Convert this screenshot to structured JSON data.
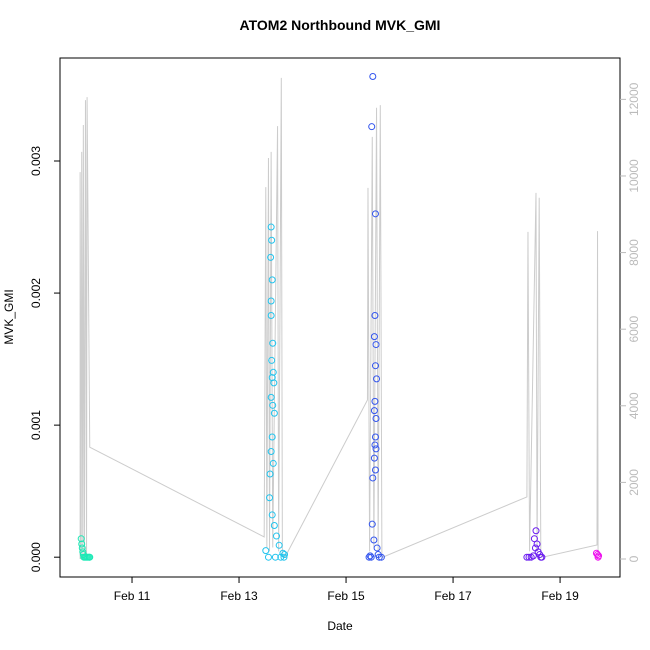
{
  "chart_data": {
    "type": "scatter",
    "title": "ATOM2 Northbound MVK_GMI",
    "xlabel": "Date",
    "ylabel": "MVK_GMI",
    "xlim": [
      9.654,
      20.12
    ],
    "ylim": [
      -0.00015,
      0.00378
    ],
    "y2lim": [
      -470,
      13080
    ],
    "xticks": [
      {
        "value": 11,
        "label": "Feb 11"
      },
      {
        "value": 13,
        "label": "Feb 13"
      },
      {
        "value": 15,
        "label": "Feb 15"
      },
      {
        "value": 17,
        "label": "Feb 17"
      },
      {
        "value": 19,
        "label": "Feb 19"
      }
    ],
    "yticks": [
      {
        "value": 0,
        "label": "0.000"
      },
      0.001,
      0.002,
      0.003
    ],
    "y2ticks": [
      0,
      2000,
      4000,
      6000,
      8000,
      10000,
      12000
    ],
    "series": [
      {
        "type": "line",
        "axis": "y2",
        "color": "#cccccc",
        "x": [
          10.03,
          10.03,
          10.05,
          10.06,
          10.08,
          10.09,
          10.11,
          10.13,
          10.15,
          10.16,
          10.21,
          13.47,
          13.5,
          13.52,
          13.55,
          13.57,
          13.6,
          13.63,
          13.72,
          13.74,
          13.79,
          13.81,
          13.86,
          15.4,
          15.41,
          15.44,
          15.49,
          15.52,
          15.57,
          15.6,
          15.64,
          15.67,
          15.69,
          18.38,
          18.4,
          18.43,
          18.55,
          18.57,
          18.61,
          18.64,
          18.68,
          19.69,
          19.7,
          19.71
        ],
        "values": [
          0,
          10100,
          0,
          10630,
          0,
          11330,
          0,
          11980,
          0,
          12060,
          2920,
          575,
          9710,
          300,
          10470,
          200,
          10630,
          300,
          11300,
          200,
          12560,
          100,
          50,
          4150,
          9690,
          200,
          11020,
          300,
          11780,
          200,
          11850,
          100,
          50,
          1620,
          8540,
          200,
          9560,
          200,
          9430,
          100,
          50,
          365,
          8560,
          100
        ]
      },
      {
        "color": "#1de9b6",
        "x": [
          10.05,
          10.06,
          10.07,
          10.08,
          10.09,
          10.1,
          10.12,
          10.14,
          10.16,
          10.18,
          10.2,
          10.21
        ],
        "values": [
          0.00014,
          0.0001,
          7e-05,
          4e-05,
          2e-05,
          0,
          0,
          0,
          0,
          0,
          0,
          0
        ]
      },
      {
        "color": "#22c4ee",
        "x": [
          13.6,
          13.61,
          13.59,
          13.62,
          13.6,
          13.6,
          13.63,
          13.61,
          13.64,
          13.62,
          13.65,
          13.6,
          13.63,
          13.66,
          13.62,
          13.6,
          13.64,
          13.58,
          13.57,
          13.62,
          13.66,
          13.7,
          13.75,
          13.82,
          13.85,
          13.5,
          13.55,
          13.68,
          13.78,
          13.84
        ],
        "values": [
          0.0025,
          0.0024,
          0.00227,
          0.0021,
          0.00194,
          0.00183,
          0.00162,
          0.00149,
          0.0014,
          0.00136,
          0.00132,
          0.00121,
          0.00115,
          0.00109,
          0.00091,
          0.0008,
          0.00071,
          0.00063,
          0.00045,
          0.00032,
          0.00024,
          0.00016,
          9e-05,
          3e-05,
          2e-05,
          5e-05,
          0,
          0,
          0,
          0
        ]
      },
      {
        "color": "#3355ee",
        "x": [
          15.5,
          15.48,
          15.55,
          15.54,
          15.53,
          15.56,
          15.55,
          15.57,
          15.54,
          15.53,
          15.56,
          15.55,
          15.54,
          15.56,
          15.53,
          15.55,
          15.5,
          15.49,
          15.52,
          15.58,
          15.6,
          15.45,
          15.43,
          15.47,
          15.62,
          15.66
        ],
        "values": [
          0.00364,
          0.00326,
          0.0026,
          0.00183,
          0.00167,
          0.00161,
          0.00145,
          0.00135,
          0.00118,
          0.00111,
          0.00105,
          0.00091,
          0.00085,
          0.00082,
          0.00075,
          0.00066,
          0.0006,
          0.00025,
          0.00013,
          7e-05,
          2e-05,
          1e-05,
          0,
          0,
          0,
          0
        ]
      },
      {
        "color": "#6a1bf0",
        "x": [
          18.55,
          18.52,
          18.57,
          18.54,
          18.59,
          18.62,
          18.5,
          18.38,
          18.42,
          18.46,
          18.64,
          18.66
        ],
        "values": [
          0.0002,
          0.00014,
          0.0001,
          7e-05,
          4e-05,
          2e-05,
          1e-05,
          0,
          0,
          0,
          0,
          0
        ]
      },
      {
        "color": "#ee10ee",
        "x": [
          19.68,
          19.7,
          19.72,
          19.71
        ],
        "values": [
          3e-05,
          2e-05,
          1e-05,
          0
        ]
      }
    ]
  }
}
